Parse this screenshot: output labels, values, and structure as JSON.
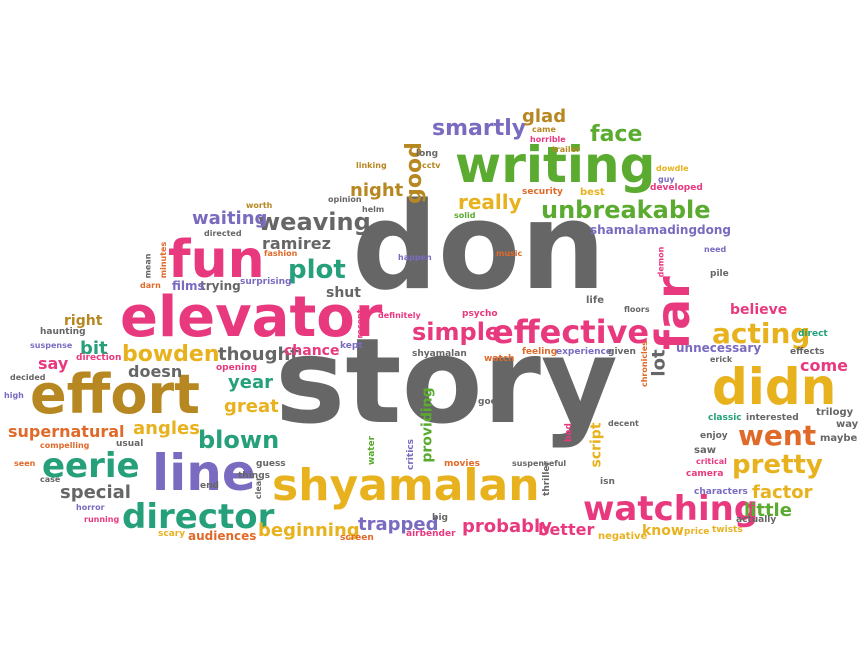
{
  "words": [
    {
      "text": "story",
      "color": "#666666",
      "rotate": 0
    },
    {
      "text": "don",
      "color": "#666666",
      "rotate": 0
    },
    {
      "text": "shyamalan",
      "color": "#e8b21f",
      "rotate": 0
    },
    {
      "text": "writing",
      "color": "#5aab2f",
      "rotate": 0
    },
    {
      "text": "elevator",
      "color": "#e8397f",
      "rotate": 0
    },
    {
      "text": "effort",
      "color": "#b78722",
      "rotate": 0
    },
    {
      "text": "didn",
      "color": "#e8b21f",
      "rotate": 0
    },
    {
      "text": "line",
      "color": "#7b6bc0",
      "rotate": 0
    },
    {
      "text": "fun",
      "color": "#e8397f",
      "rotate": 0
    },
    {
      "text": "far",
      "color": "#e8397f",
      "rotate": -90
    },
    {
      "text": "director",
      "color": "#25a07a",
      "rotate": 0
    },
    {
      "text": "watching",
      "color": "#e8397f",
      "rotate": 0
    },
    {
      "text": "effective",
      "color": "#e8397f",
      "rotate": 0
    },
    {
      "text": "eerie",
      "color": "#25a07a",
      "rotate": 0
    },
    {
      "text": "went",
      "color": "#e06a2a",
      "rotate": 0
    },
    {
      "text": "pretty",
      "color": "#e8b21f",
      "rotate": 0
    },
    {
      "text": "acting",
      "color": "#e8b21f",
      "rotate": 0
    },
    {
      "text": "plot",
      "color": "#25a07a",
      "rotate": 0
    },
    {
      "text": "weaving",
      "color": "#666666",
      "rotate": 0
    },
    {
      "text": "unbreakable",
      "color": "#5aab2f",
      "rotate": 0
    },
    {
      "text": "smartly",
      "color": "#7b6bc0",
      "rotate": 0
    },
    {
      "text": "glad",
      "color": "#b78722",
      "rotate": 0
    },
    {
      "text": "face",
      "color": "#5aab2f",
      "rotate": 0
    },
    {
      "text": "really",
      "color": "#e8b21f",
      "rotate": 0
    },
    {
      "text": "good",
      "color": "#b78722",
      "rotate": -90
    },
    {
      "text": "night",
      "color": "#b78722",
      "rotate": 0
    },
    {
      "text": "waiting",
      "color": "#7b6bc0",
      "rotate": 0
    },
    {
      "text": "ramirez",
      "color": "#666666",
      "rotate": 0
    },
    {
      "text": "simple",
      "color": "#e8397f",
      "rotate": 0
    },
    {
      "text": "bowden",
      "color": "#e8b21f",
      "rotate": 0
    },
    {
      "text": "thought",
      "color": "#666666",
      "rotate": 0
    },
    {
      "text": "blown",
      "color": "#25a07a",
      "rotate": 0
    },
    {
      "text": "great",
      "color": "#e8b21f",
      "rotate": 0
    },
    {
      "text": "year",
      "color": "#25a07a",
      "rotate": 0
    },
    {
      "text": "angles",
      "color": "#e8b21f",
      "rotate": 0
    },
    {
      "text": "supernatural",
      "color": "#e06a2a",
      "rotate": 0
    },
    {
      "text": "special",
      "color": "#666666",
      "rotate": 0
    },
    {
      "text": "trapped",
      "color": "#7b6bc0",
      "rotate": 0
    },
    {
      "text": "probably",
      "color": "#e8397f",
      "rotate": 0
    },
    {
      "text": "better",
      "color": "#e8397f",
      "rotate": 0
    },
    {
      "text": "beginning",
      "color": "#e8b21f",
      "rotate": 0
    },
    {
      "text": "factor",
      "color": "#e8b21f",
      "rotate": 0
    },
    {
      "text": "little",
      "color": "#5aab2f",
      "rotate": 0
    },
    {
      "text": "come",
      "color": "#e8397f",
      "rotate": 0
    },
    {
      "text": "believe",
      "color": "#e8397f",
      "rotate": 0
    },
    {
      "text": "unnecessary",
      "color": "#7b6bc0",
      "rotate": 0
    },
    {
      "text": "lot",
      "color": "#666666",
      "rotate": -90
    },
    {
      "text": "script",
      "color": "#e8b21f",
      "rotate": -90
    },
    {
      "text": "providing",
      "color": "#5aab2f",
      "rotate": -90
    },
    {
      "text": "bit",
      "color": "#25a07a",
      "rotate": 0
    },
    {
      "text": "say",
      "color": "#e8397f",
      "rotate": 0
    },
    {
      "text": "right",
      "color": "#b78722",
      "rotate": 0
    },
    {
      "text": "doesn",
      "color": "#666666",
      "rotate": 0
    },
    {
      "text": "chance",
      "color": "#e8397f",
      "rotate": 0
    },
    {
      "text": "shamalamadingdong",
      "color": "#7b6bc0",
      "rotate": 0
    },
    {
      "text": "audiences",
      "color": "#e06a2a",
      "rotate": 0
    },
    {
      "text": "shut",
      "color": "#666666",
      "rotate": 0
    },
    {
      "text": "know",
      "color": "#e8b21f",
      "rotate": 0
    },
    {
      "text": "negative",
      "color": "#e8b21f",
      "rotate": 0
    },
    {
      "text": "trying",
      "color": "#666666",
      "rotate": 0
    },
    {
      "text": "films",
      "color": "#7b6bc0",
      "rotate": 0
    },
    {
      "text": "surprising",
      "color": "#7b6bc0",
      "rotate": 0
    },
    {
      "text": "fashion",
      "color": "#e06a2a",
      "rotate": 0
    },
    {
      "text": "directed",
      "color": "#666666",
      "rotate": 0
    },
    {
      "text": "worth",
      "color": "#b78722",
      "rotate": 0
    },
    {
      "text": "helm",
      "color": "#666666",
      "rotate": 0
    },
    {
      "text": "opinion",
      "color": "#666666",
      "rotate": 0
    },
    {
      "text": "linking",
      "color": "#b78722",
      "rotate": 0
    },
    {
      "text": "long",
      "color": "#666666",
      "rotate": 0
    },
    {
      "text": "cctv",
      "color": "#b78722",
      "rotate": 0
    },
    {
      "text": "solid",
      "color": "#5aab2f",
      "rotate": 0
    },
    {
      "text": "happen",
      "color": "#7b6bc0",
      "rotate": 0
    },
    {
      "text": "music",
      "color": "#e06a2a",
      "rotate": 0
    },
    {
      "text": "security",
      "color": "#e06a2a",
      "rotate": 0
    },
    {
      "text": "best",
      "color": "#e8b21f",
      "rotate": 0
    },
    {
      "text": "horrible",
      "color": "#e8397f",
      "rotate": 0
    },
    {
      "text": "came",
      "color": "#b78722",
      "rotate": 0
    },
    {
      "text": "trailer",
      "color": "#b78722",
      "rotate": 0
    },
    {
      "text": "guy",
      "color": "#7b6bc0",
      "rotate": 0
    },
    {
      "text": "developed",
      "color": "#e8397f",
      "rotate": 0
    },
    {
      "text": "dowdle",
      "color": "#e8b21f",
      "rotate": 0
    },
    {
      "text": "need",
      "color": "#7b6bc0",
      "rotate": 0
    },
    {
      "text": "demon",
      "color": "#e8397f",
      "rotate": -90
    },
    {
      "text": "pile",
      "color": "#666666",
      "rotate": 0
    },
    {
      "text": "life",
      "color": "#666666",
      "rotate": 0
    },
    {
      "text": "floors",
      "color": "#666666",
      "rotate": 0
    },
    {
      "text": "chronicles",
      "color": "#e06a2a",
      "rotate": -90
    },
    {
      "text": "psycho",
      "color": "#e8397f",
      "rotate": 0
    },
    {
      "text": "definitely",
      "color": "#e8397f",
      "rotate": 0
    },
    {
      "text": "recent",
      "color": "#e8397f",
      "rotate": -90
    },
    {
      "text": "kept",
      "color": "#7b6bc0",
      "rotate": 0
    },
    {
      "text": "shyamalan",
      "color": "#666666",
      "rotate": 0
    },
    {
      "text": "watch",
      "color": "#e06a2a",
      "rotate": 0
    },
    {
      "text": "feeling",
      "color": "#e06a2a",
      "rotate": 0
    },
    {
      "text": "experience",
      "color": "#7b6bc0",
      "rotate": 0
    },
    {
      "text": "given",
      "color": "#666666",
      "rotate": 0
    },
    {
      "text": "opening",
      "color": "#e8397f",
      "rotate": 0
    },
    {
      "text": "john",
      "color": "#666666",
      "rotate": 0
    },
    {
      "text": "goes",
      "color": "#666666",
      "rotate": 0
    },
    {
      "text": "decent",
      "color": "#666666",
      "rotate": 0
    },
    {
      "text": "classic",
      "color": "#25a07a",
      "rotate": 0
    },
    {
      "text": "interested",
      "color": "#666666",
      "rotate": 0
    },
    {
      "text": "trilogy",
      "color": "#666666",
      "rotate": 0
    },
    {
      "text": "way",
      "color": "#666666",
      "rotate": 0
    },
    {
      "text": "maybe",
      "color": "#666666",
      "rotate": 0
    },
    {
      "text": "enjoy",
      "color": "#666666",
      "rotate": 0
    },
    {
      "text": "critical",
      "color": "#e8397f",
      "rotate": 0
    },
    {
      "text": "camera",
      "color": "#e8397f",
      "rotate": 0
    },
    {
      "text": "saw",
      "color": "#666666",
      "rotate": 0
    },
    {
      "text": "characters",
      "color": "#7b6bc0",
      "rotate": 0
    },
    {
      "text": "actually",
      "color": "#666666",
      "rotate": 0
    },
    {
      "text": "price",
      "color": "#e8b21f",
      "rotate": 0
    },
    {
      "text": "twists",
      "color": "#e8b21f",
      "rotate": 0
    },
    {
      "text": "direct",
      "color": "#25a07a",
      "rotate": 0
    },
    {
      "text": "effects",
      "color": "#666666",
      "rotate": 0
    },
    {
      "text": "erick",
      "color": "#666666",
      "rotate": 0
    },
    {
      "text": "thriller",
      "color": "#666666",
      "rotate": -90
    },
    {
      "text": "bad",
      "color": "#e8397f",
      "rotate": -90
    },
    {
      "text": "isn",
      "color": "#666666",
      "rotate": 0
    },
    {
      "text": "suspenseful",
      "color": "#666666",
      "rotate": 0
    },
    {
      "text": "movies",
      "color": "#e06a2a",
      "rotate": 0
    },
    {
      "text": "critics",
      "color": "#7b6bc0",
      "rotate": -90
    },
    {
      "text": "water",
      "color": "#5aab2f",
      "rotate": -90
    },
    {
      "text": "big",
      "color": "#666666",
      "rotate": 0
    },
    {
      "text": "airbender",
      "color": "#e8397f",
      "rotate": 0
    },
    {
      "text": "screen",
      "color": "#e06a2a",
      "rotate": 0
    },
    {
      "text": "clear",
      "color": "#666666",
      "rotate": -90
    },
    {
      "text": "guess",
      "color": "#666666",
      "rotate": 0
    },
    {
      "text": "things",
      "color": "#666666",
      "rotate": 0
    },
    {
      "text": "end",
      "color": "#666666",
      "rotate": 0
    },
    {
      "text": "usual",
      "color": "#666666",
      "rotate": 0
    },
    {
      "text": "scary",
      "color": "#e8b21f",
      "rotate": 0
    },
    {
      "text": "running",
      "color": "#e8397f",
      "rotate": 0
    },
    {
      "text": "horror",
      "color": "#7b6bc0",
      "rotate": 0
    },
    {
      "text": "case",
      "color": "#666666",
      "rotate": 0
    },
    {
      "text": "seen",
      "color": "#e06a2a",
      "rotate": 0
    },
    {
      "text": "compelling",
      "color": "#e06a2a",
      "rotate": 0
    },
    {
      "text": "decided",
      "color": "#666666",
      "rotate": 0
    },
    {
      "text": "high",
      "color": "#7b6bc0",
      "rotate": 0
    },
    {
      "text": "haunting",
      "color": "#666666",
      "rotate": 0
    },
    {
      "text": "suspense",
      "color": "#7b6bc0",
      "rotate": 0
    },
    {
      "text": "direction",
      "color": "#e8397f",
      "rotate": 0
    },
    {
      "text": "darn",
      "color": "#e06a2a",
      "rotate": 0
    },
    {
      "text": "mean",
      "color": "#666666",
      "rotate": -90
    },
    {
      "text": "minutes",
      "color": "#e06a2a",
      "rotate": -90
    }
  ]
}
